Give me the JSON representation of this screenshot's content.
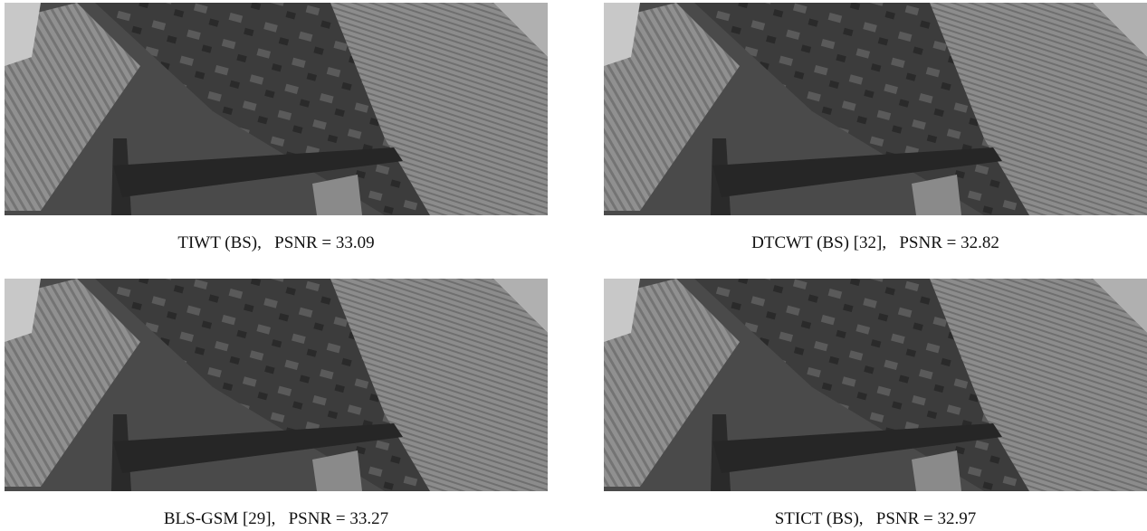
{
  "panels": [
    {
      "caption": "TIWT (BS),   PSNR = 33.09"
    },
    {
      "caption": "DTCWT (BS) [32],   PSNR = 32.82"
    },
    {
      "caption": "BLS-GSM [29],   PSNR = 33.27"
    },
    {
      "caption": "STICT (BS),   PSNR = 32.97"
    }
  ]
}
